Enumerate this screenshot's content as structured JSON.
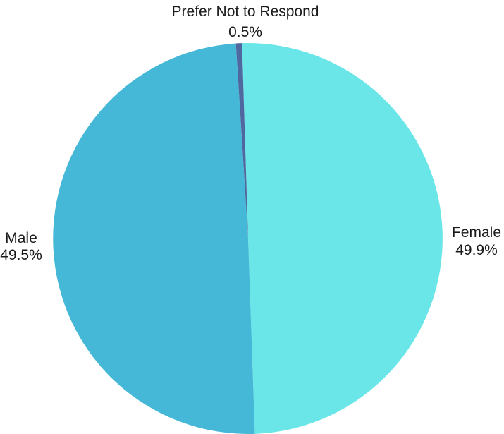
{
  "chart_data": {
    "type": "pie",
    "title": "",
    "start_angle_deg": -1.8,
    "direction": "clockwise",
    "slices": [
      {
        "label": "Female",
        "value": 49.9,
        "value_label": "49.9%",
        "color": "#6be6e8"
      },
      {
        "label": "Male",
        "value": 49.5,
        "value_label": "49.5%",
        "color": "#44b8d6"
      },
      {
        "label": "Prefer Not to Respond",
        "value": 0.5,
        "value_label": "0.5%",
        "color": "#4f68a0"
      }
    ],
    "legend": "none"
  }
}
